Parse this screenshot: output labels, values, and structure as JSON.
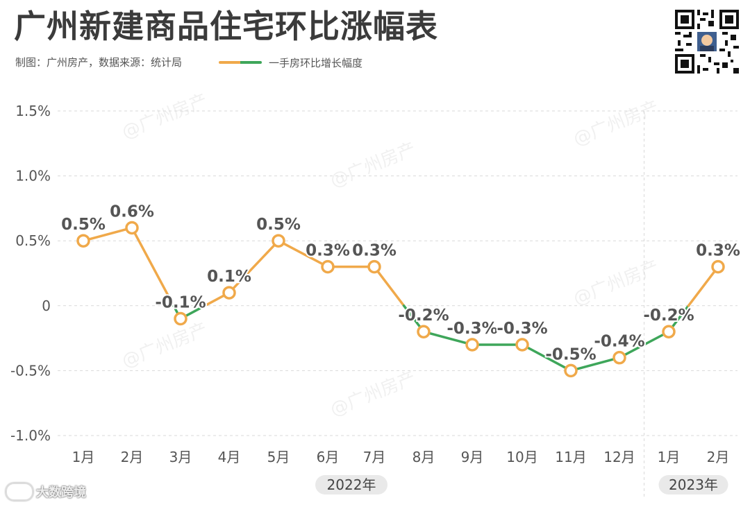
{
  "title": "广州新建商品住宅环比涨幅表",
  "subtitle": "制图：广州房产，数据来源：统计局",
  "watermark": "@广州房产",
  "brand": "大数跨境",
  "colors": {
    "up": "#f0a94a",
    "down": "#3ea65a",
    "grid": "#d9d9d9",
    "label": "#555555",
    "marker_fill": "#ffffff"
  },
  "chart_data": {
    "type": "line",
    "title": "广州新建商品住宅环比涨幅表",
    "categories": [
      "1月",
      "2月",
      "3月",
      "4月",
      "5月",
      "6月",
      "7月",
      "8月",
      "9月",
      "10月",
      "11月",
      "12月",
      "1月",
      "2月"
    ],
    "series": [
      {
        "name": "一手房环比增长幅度",
        "values": [
          0.5,
          0.6,
          -0.1,
          0.1,
          0.5,
          0.3,
          0.3,
          -0.2,
          -0.3,
          -0.3,
          -0.5,
          -0.4,
          -0.2,
          0.3
        ],
        "labels": [
          "0.5%",
          "0.6%",
          "-0.1%",
          "0.1%",
          "0.5%",
          "0.3%",
          "0.3%",
          "-0.2%",
          "-0.3%",
          "-0.3%",
          "-0.5%",
          "-0.4%",
          "-0.2%",
          "0.3%"
        ]
      }
    ],
    "yticks": [
      {
        "value": 1.5,
        "label": "1.5%"
      },
      {
        "value": 1.0,
        "label": "1.0%"
      },
      {
        "value": 0.5,
        "label": "0.5%"
      },
      {
        "value": 0,
        "label": "0"
      },
      {
        "value": -0.5,
        "label": "-0.5%"
      },
      {
        "value": -1.0,
        "label": "-1.0%"
      }
    ],
    "ylim": [
      -1.0,
      1.5
    ],
    "groups": [
      {
        "label": "2022年",
        "from": 0,
        "to": 11
      },
      {
        "label": "2023年",
        "from": 12,
        "to": 13
      }
    ],
    "xlabel": "",
    "ylabel": "",
    "grid": true,
    "legend": "top"
  }
}
